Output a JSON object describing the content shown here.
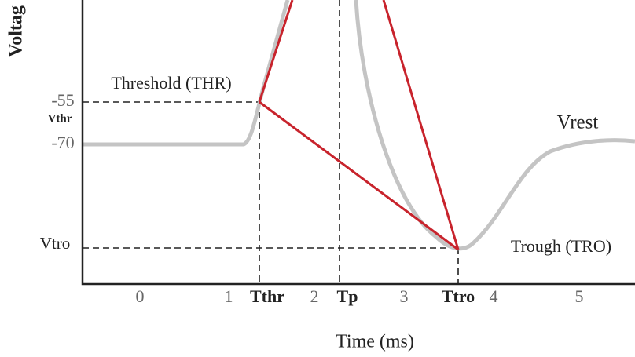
{
  "y_axis": {
    "label": "Voltag",
    "labels": [
      "-55",
      "Vthr",
      "-70",
      "Vtro"
    ]
  },
  "x_axis": {
    "label": "Time (ms)",
    "labels": [
      "0",
      "1",
      "Tthr",
      "2",
      "Tp",
      "3",
      "Ttro",
      "4",
      "5"
    ]
  },
  "annotations": {
    "threshold": "Threshold (THR)",
    "rest": "Vrest",
    "trough": "Trough (TRO)"
  }
}
